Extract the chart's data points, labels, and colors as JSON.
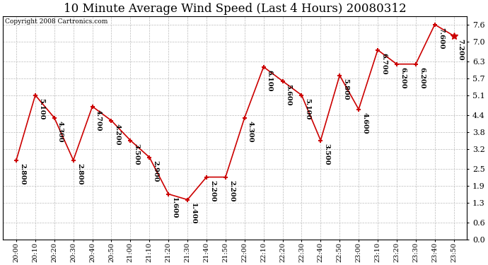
{
  "title": "10 Minute Average Wind Speed (Last 4 Hours) 20080312",
  "copyright": "Copyright 2008 Cartronics.com",
  "x_labels": [
    "20:00",
    "20:10",
    "20:20",
    "20:30",
    "20:40",
    "20:50",
    "21:00",
    "21:10",
    "21:20",
    "21:30",
    "21:40",
    "21:50",
    "22:00",
    "22:10",
    "22:20",
    "22:30",
    "22:40",
    "22:50",
    "23:00",
    "23:10",
    "23:20",
    "23:30",
    "23:40",
    "23:50"
  ],
  "y_values": [
    2.8,
    5.1,
    4.3,
    2.8,
    4.7,
    4.2,
    3.5,
    2.9,
    1.6,
    1.4,
    2.2,
    2.2,
    4.3,
    6.1,
    5.6,
    5.1,
    3.5,
    5.8,
    4.6,
    6.7,
    6.2,
    6.2,
    7.6,
    7.2
  ],
  "point_labels": [
    "2.800",
    "5.100",
    "4.300",
    "2.800",
    "4.700",
    "4.200",
    "3.500",
    "2.900",
    "1.600",
    "1.400",
    "2.200",
    "2.200",
    "4.300",
    "6.100",
    "5.600",
    "5.100",
    "3.500",
    "5.800",
    "4.600",
    "6.700",
    "6.200",
    "6.200",
    "7.600",
    "7.200"
  ],
  "line_color": "#cc0000",
  "marker_color": "#cc0000",
  "background_color": "#ffffff",
  "grid_color": "#bbbbbb",
  "y_ticks": [
    0.0,
    0.6,
    1.3,
    1.9,
    2.5,
    3.2,
    3.8,
    4.4,
    5.1,
    5.7,
    6.3,
    7.0,
    7.6
  ],
  "ylim": [
    0.0,
    7.9
  ],
  "title_fontsize": 12,
  "label_fontsize": 7.0
}
